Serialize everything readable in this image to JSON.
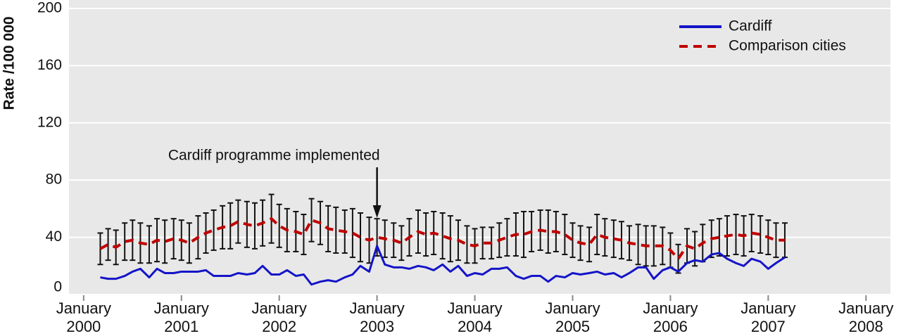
{
  "chart_data": {
    "type": "line",
    "y_label": "Rate /100 000",
    "annotation": {
      "text": "Cardiff programme implemented",
      "x": 2003
    },
    "xlim": [
      1999.85,
      2008.25
    ],
    "xticks": [
      {
        "value": 2000,
        "label": "January 2000"
      },
      {
        "value": 2001,
        "label": "January 2001"
      },
      {
        "value": 2002,
        "label": "January 2002"
      },
      {
        "value": 2003,
        "label": "January 2003"
      },
      {
        "value": 2004,
        "label": "January 2004"
      },
      {
        "value": 2005,
        "label": "January 2005"
      },
      {
        "value": 2006,
        "label": "January 2006"
      },
      {
        "value": 2007,
        "label": "January 2007"
      },
      {
        "value": 2008,
        "label": "January 2008"
      }
    ],
    "ylim": [
      0,
      200
    ],
    "yticks": [
      0,
      40,
      80,
      120,
      160,
      200
    ],
    "grid": true,
    "legend": "upper right",
    "x": [
      2000.17,
      2000.25,
      2000.33,
      2000.42,
      2000.5,
      2000.58,
      2000.67,
      2000.75,
      2000.83,
      2000.92,
      2001,
      2001.08,
      2001.17,
      2001.25,
      2001.33,
      2001.42,
      2001.5,
      2001.58,
      2001.67,
      2001.75,
      2001.83,
      2001.92,
      2002,
      2002.08,
      2002.17,
      2002.25,
      2002.33,
      2002.42,
      2002.5,
      2002.58,
      2002.67,
      2002.75,
      2002.83,
      2002.92,
      2003,
      2003.08,
      2003.17,
      2003.25,
      2003.33,
      2003.42,
      2003.5,
      2003.58,
      2003.67,
      2003.75,
      2003.83,
      2003.92,
      2004,
      2004.08,
      2004.17,
      2004.25,
      2004.33,
      2004.42,
      2004.5,
      2004.58,
      2004.67,
      2004.75,
      2004.83,
      2004.92,
      2005,
      2005.08,
      2005.17,
      2005.25,
      2005.33,
      2005.42,
      2005.5,
      2005.58,
      2005.67,
      2005.75,
      2005.83,
      2005.92,
      2006,
      2006.08,
      2006.17,
      2006.25,
      2006.33,
      2006.42,
      2006.5,
      2006.58,
      2006.67,
      2006.75,
      2006.83,
      2006.92,
      2007,
      2007.08,
      2007.17
    ],
    "series": [
      {
        "name": "Cardiff",
        "color": "#1414c8",
        "style": "solid",
        "values": [
          12,
          11,
          11,
          13,
          16,
          18,
          12,
          18,
          15,
          15,
          16,
          16,
          16,
          17,
          13,
          13,
          13,
          15,
          14,
          15,
          20,
          14,
          14,
          17,
          13,
          14,
          7,
          9,
          10,
          9,
          12,
          14,
          20,
          16,
          34,
          21,
          19,
          19,
          18,
          20,
          19,
          17,
          21,
          16,
          20,
          13,
          15,
          14,
          18,
          18,
          19,
          13,
          11,
          13,
          13,
          9,
          13,
          12,
          15,
          14,
          15,
          16,
          14,
          15,
          12,
          15,
          19,
          19,
          11,
          17,
          19,
          16,
          22,
          24,
          23,
          28,
          29,
          25,
          22,
          20,
          25,
          23,
          18,
          22,
          26
        ]
      },
      {
        "name": "Comparison cities",
        "color": "#c00000",
        "style": "dashed",
        "values": [
          32,
          35,
          33,
          37,
          38,
          36,
          35,
          38,
          37,
          39,
          38,
          36,
          40,
          43,
          45,
          47,
          48,
          51,
          49,
          48,
          50,
          53,
          48,
          45,
          44,
          42,
          52,
          50,
          46,
          45,
          44,
          43,
          40,
          38,
          40,
          39,
          38,
          36,
          40,
          44,
          42,
          43,
          41,
          39,
          38,
          35,
          34,
          36,
          36,
          38,
          40,
          42,
          42,
          44,
          45,
          44,
          44,
          42,
          38,
          36,
          35,
          42,
          40,
          39,
          38,
          36,
          35,
          34,
          34,
          34,
          31,
          25,
          34,
          32,
          36,
          39,
          40,
          41,
          42,
          41,
          43,
          42,
          40,
          38,
          38
        ],
        "errors": [
          11,
          11,
          12,
          13,
          14,
          14,
          13,
          15,
          15,
          14,
          14,
          14,
          15,
          14,
          14,
          15,
          16,
          15,
          16,
          16,
          16,
          17,
          15,
          15,
          14,
          14,
          15,
          15,
          16,
          16,
          15,
          17,
          17,
          16,
          13,
          13,
          12,
          12,
          13,
          15,
          15,
          15,
          16,
          16,
          14,
          13,
          12,
          11,
          11,
          12,
          13,
          15,
          16,
          14,
          14,
          15,
          14,
          14,
          12,
          12,
          12,
          14,
          13,
          13,
          13,
          12,
          14,
          14,
          14,
          13,
          12,
          10,
          12,
          12,
          13,
          13,
          13,
          14,
          14,
          14,
          13,
          13,
          12,
          12,
          12
        ]
      }
    ]
  }
}
